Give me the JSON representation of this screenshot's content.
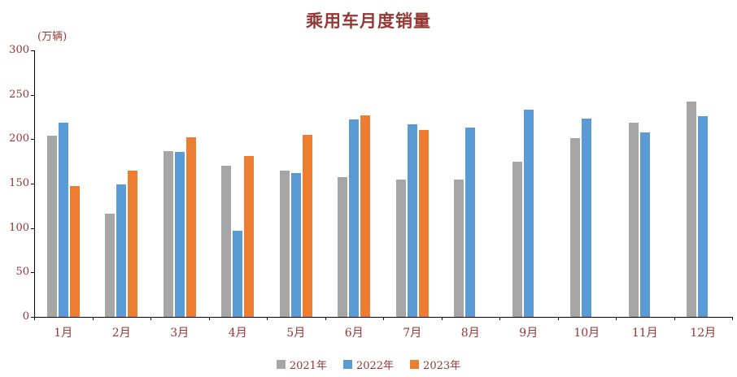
{
  "title": "乘用车月度销量",
  "y_axis_unit": "(万辆)",
  "text_color": "#953735",
  "axis_color": "#000000",
  "chart_data": {
    "type": "bar",
    "title": "乘用车月度销量",
    "ylabel": "(万辆)",
    "xlabel": "",
    "ylim": [
      0,
      300
    ],
    "yticks": [
      0,
      50,
      100,
      150,
      200,
      250,
      300
    ],
    "grid": false,
    "legend_position": "bottom",
    "categories": [
      "1月",
      "2月",
      "3月",
      "4月",
      "5月",
      "6月",
      "7月",
      "8月",
      "9月",
      "10月",
      "11月",
      "12月"
    ],
    "series": [
      {
        "name": "2021年",
        "color": "#A6A6A6",
        "values": [
          204,
          116,
          187,
          170,
          165,
          157,
          155,
          155,
          175,
          201,
          219,
          242
        ]
      },
      {
        "name": "2022年",
        "color": "#5B9BD5",
        "values": [
          219,
          149,
          186,
          97,
          162,
          222,
          217,
          213,
          233,
          223,
          208,
          226
        ]
      },
      {
        "name": "2023年",
        "color": "#ED7D31",
        "values": [
          147,
          165,
          202,
          181,
          205,
          227,
          210,
          null,
          null,
          null,
          null,
          null
        ]
      }
    ]
  }
}
